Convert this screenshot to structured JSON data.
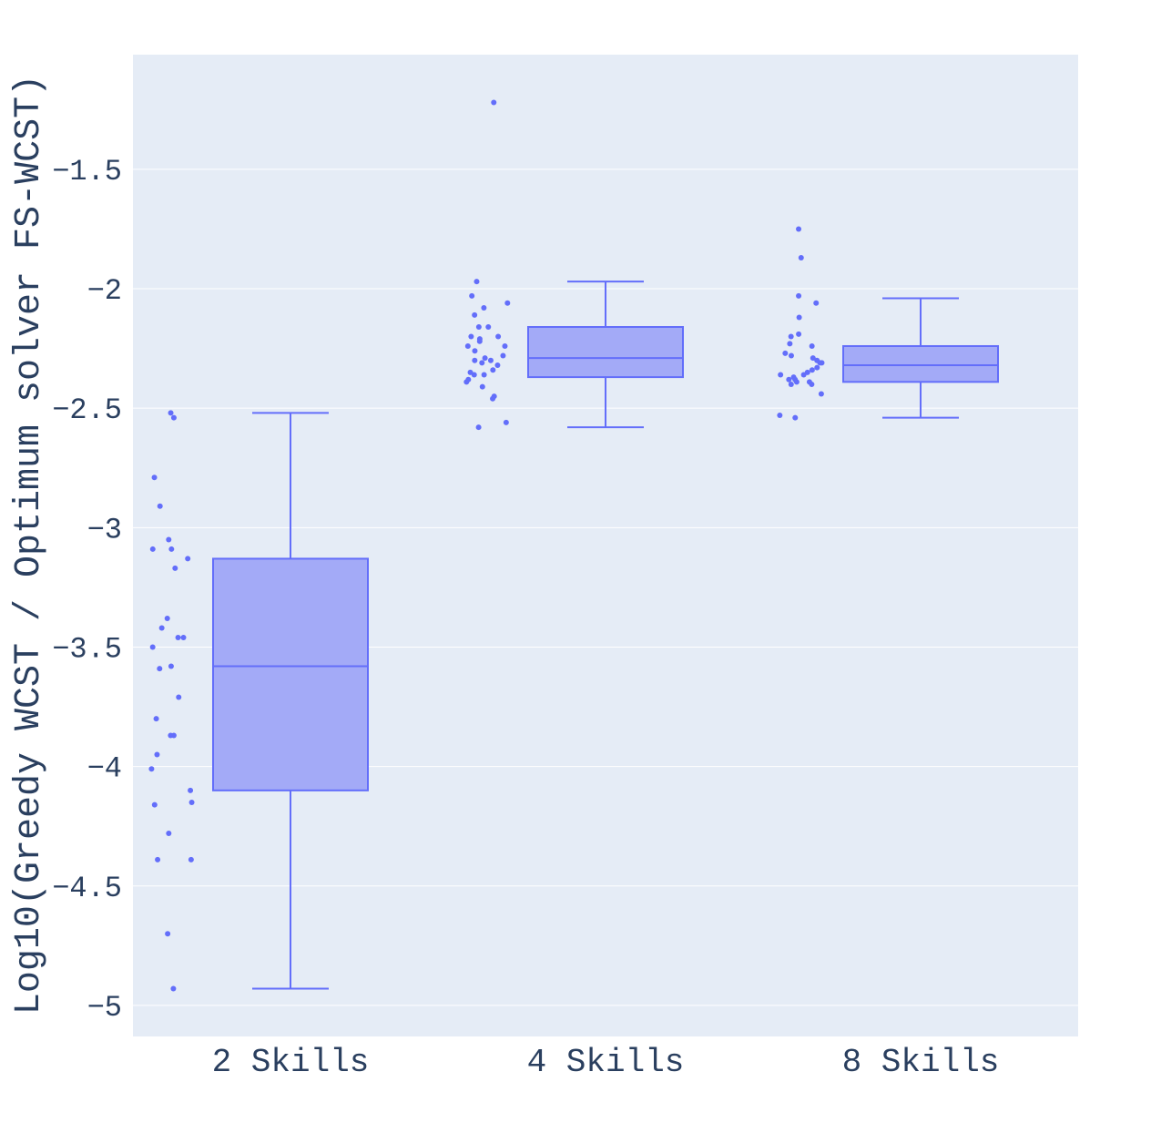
{
  "chart_data": {
    "type": "box",
    "title": "",
    "xlabel": "",
    "ylabel": "Log10(Greedy WCST / Optimum solver FS-WCST)",
    "ylim": [
      -5.13,
      -1.02
    ],
    "yticks": [
      -1.5,
      -2,
      -2.5,
      -3,
      -3.5,
      -4,
      -4.5,
      -5
    ],
    "ytick_labels": [
      "−1.5",
      "−2",
      "−2.5",
      "−3",
      "−3.5",
      "−4",
      "−4.5",
      "−5"
    ],
    "grid": true,
    "colors": {
      "plot_bg": "#e5ecf6",
      "box_line": "#636efa",
      "box_fill": "#a3aaf7",
      "grid": "#ffffff",
      "text": "#2a3f5f"
    },
    "categories": [
      "2 Skills",
      "4 Skills",
      "8 Skills"
    ],
    "boxes": [
      {
        "category": "2 Skills",
        "lower_fence": -4.93,
        "q1": -4.1,
        "median": -3.58,
        "q3": -3.13,
        "upper_fence": -2.52
      },
      {
        "category": "4 Skills",
        "lower_fence": -2.58,
        "q1": -2.37,
        "median": -2.29,
        "q3": -2.16,
        "upper_fence": -1.97
      },
      {
        "category": "8 Skills",
        "lower_fence": -2.54,
        "q1": -2.39,
        "median": -2.32,
        "q3": -2.24,
        "upper_fence": -2.04
      }
    ],
    "points": [
      {
        "category": "2 Skills",
        "values": [
          -2.52,
          -2.54,
          -2.79,
          -2.91,
          -3.05,
          -3.09,
          -3.09,
          -3.13,
          -3.17,
          -3.38,
          -3.42,
          -3.46,
          -3.46,
          -3.5,
          -3.58,
          -3.59,
          -3.71,
          -3.8,
          -3.87,
          -3.87,
          -3.95,
          -4.01,
          -4.1,
          -4.15,
          -4.16,
          -4.28,
          -4.39,
          -4.39,
          -4.7,
          -4.93
        ]
      },
      {
        "category": "4 Skills",
        "values": [
          -1.22,
          -1.97,
          -2.03,
          -2.06,
          -2.08,
          -2.11,
          -2.16,
          -2.16,
          -2.2,
          -2.2,
          -2.21,
          -2.22,
          -2.24,
          -2.24,
          -2.26,
          -2.28,
          -2.29,
          -2.3,
          -2.3,
          -2.31,
          -2.32,
          -2.34,
          -2.35,
          -2.36,
          -2.36,
          -2.38,
          -2.39,
          -2.41,
          -2.45,
          -2.46,
          -2.56,
          -2.58
        ]
      },
      {
        "category": "8 Skills",
        "values": [
          -1.75,
          -1.87,
          -2.03,
          -2.06,
          -2.12,
          -2.19,
          -2.2,
          -2.23,
          -2.24,
          -2.27,
          -2.28,
          -2.29,
          -2.3,
          -2.31,
          -2.31,
          -2.33,
          -2.34,
          -2.35,
          -2.36,
          -2.36,
          -2.37,
          -2.38,
          -2.38,
          -2.39,
          -2.39,
          -2.4,
          -2.4,
          -2.44,
          -2.53,
          -2.54
        ]
      }
    ]
  }
}
